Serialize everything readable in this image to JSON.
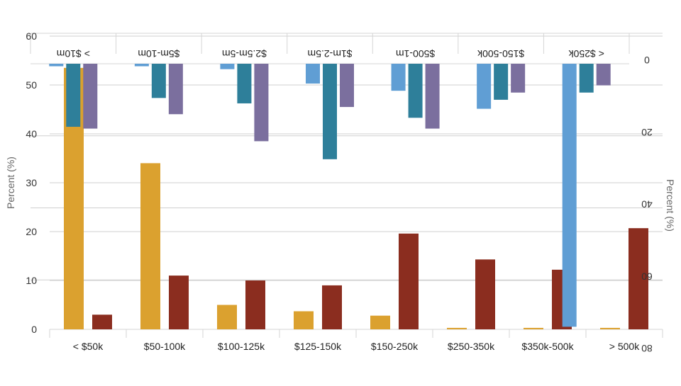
{
  "colors": {
    "grid": "#cfcfcf",
    "axis": "#d5d5d5",
    "tick_text": "#333333"
  },
  "chart_data": [
    {
      "type": "bar",
      "orientation": "upright",
      "ylabel": "Percent (%)",
      "ylim": [
        0,
        60
      ],
      "yticks": [
        0,
        10,
        20,
        30,
        40,
        50,
        60
      ],
      "grid": true,
      "categories": [
        "< $50k",
        "$50-100k",
        "$100-125k",
        "$125-150k",
        "$150-250k",
        "$250-350k",
        "$350k-500k",
        "> 500k"
      ],
      "series": [
        {
          "color": "#dba12f",
          "values": [
            53.5,
            34,
            5,
            3.7,
            2.8,
            0.3,
            0.3,
            0.3
          ]
        },
        {
          "color": "#8b2d1f",
          "values": [
            3,
            11,
            10,
            9,
            19.6,
            14.3,
            12.2,
            20.7
          ]
        }
      ]
    },
    {
      "type": "bar",
      "orientation": "rotated-180",
      "ylabel": "Percent (%)",
      "ylim": [
        0,
        80
      ],
      "yticks": [
        0,
        20,
        40,
        60,
        80
      ],
      "grid": true,
      "categories": [
        "< $250k",
        "$150-500k",
        "$500-1m",
        "$1m-2.5m",
        "$2.5m-5m",
        "$5m-10m",
        "> $10m"
      ],
      "series": [
        {
          "color": "#7b6f9e",
          "values": [
            6,
            8,
            18,
            12,
            21.5,
            14,
            18
          ]
        },
        {
          "color": "#2e7f9a",
          "values": [
            8,
            10,
            15,
            26.5,
            11,
            9.5,
            17.5
          ]
        },
        {
          "color": "#609ed4",
          "values": [
            73,
            12.5,
            7.5,
            5.5,
            1.5,
            0.7,
            0.7
          ]
        }
      ]
    }
  ]
}
